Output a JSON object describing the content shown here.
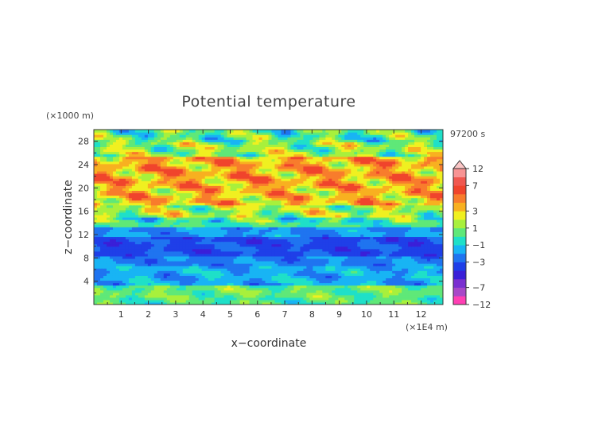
{
  "chart_data": {
    "type": "heatmap",
    "title": "Potential temperature",
    "xlabel": "x−coordinate",
    "ylabel": "z−coordinate",
    "x_unit": "(×1E4 m)",
    "y_unit": "(×1000 m)",
    "time_label": "97200 s",
    "xlim": [
      0,
      12.8
    ],
    "ylim": [
      0,
      30
    ],
    "x_ticks": [
      "1",
      "2",
      "3",
      "4",
      "5",
      "6",
      "7",
      "8",
      "9",
      "10",
      "11",
      "12"
    ],
    "y_ticks": [
      "4",
      "8",
      "12",
      "16",
      "20",
      "24",
      "28"
    ],
    "x_tick_values": [
      1,
      2,
      3,
      4,
      5,
      6,
      7,
      8,
      9,
      10,
      11,
      12
    ],
    "y_tick_values": [
      4,
      8,
      12,
      16,
      20,
      24,
      28
    ],
    "colorbar": {
      "labels": [
        "12",
        "7",
        "3",
        "1",
        "−1",
        "−3",
        "−7",
        "−12"
      ],
      "label_values": [
        12,
        7,
        3,
        1,
        -1,
        -3,
        -7,
        -12
      ],
      "levels": [
        -12,
        -9,
        -7,
        -5,
        -4,
        -3,
        -2,
        -1,
        0,
        1,
        2,
        3,
        4,
        5,
        7,
        9,
        12
      ],
      "colors": [
        "#ff3fb4",
        "#a848c8",
        "#7a2fd0",
        "#3a1fd8",
        "#1f3fe8",
        "#1f74f0",
        "#18b4f4",
        "#1fe0c8",
        "#5fe878",
        "#a8f03c",
        "#f0f020",
        "#f8b020",
        "#f87c2c",
        "#f0442c",
        "#f05850",
        "#f89494"
      ],
      "extend_color": "#fbc6c6"
    },
    "zones": [
      {
        "z": [
          0,
          1.2
        ],
        "base": 0.2
      },
      {
        "z": [
          1.2,
          3.2
        ],
        "base": 0.6
      },
      {
        "z": [
          3.2,
          6.5
        ],
        "base": -1.6
      },
      {
        "z": [
          6.5,
          8.5
        ],
        "base": -2.3
      },
      {
        "z": [
          8.5,
          11.5
        ],
        "base": -3.3
      },
      {
        "z": [
          11.5,
          13.5
        ],
        "base": -2.0
      },
      {
        "z": [
          13.5,
          15
        ],
        "base": 0.0
      },
      {
        "z": [
          15,
          17
        ],
        "base": 1.5
      },
      {
        "z": [
          17,
          20
        ],
        "base": 3.2
      },
      {
        "z": [
          20,
          25.5
        ],
        "base": 3.6
      },
      {
        "z": [
          25.5,
          28
        ],
        "base": 1.2
      },
      {
        "z": [
          28,
          30
        ],
        "base": 0.3
      }
    ]
  }
}
